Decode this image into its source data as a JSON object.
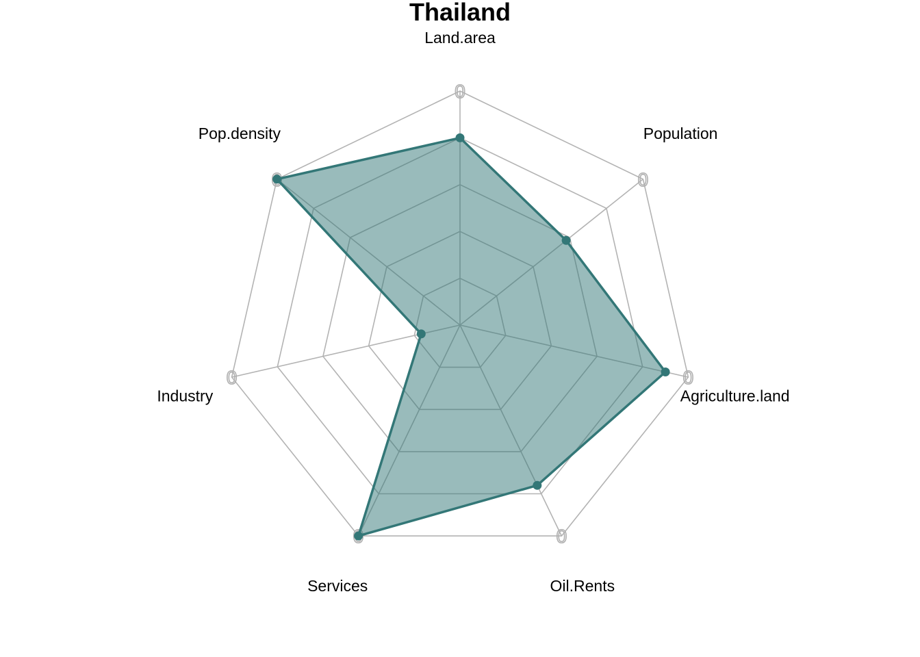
{
  "chart_data": {
    "type": "radar",
    "title": "Thailand",
    "axes": [
      "Land.area",
      "Population",
      "Agriculture.land",
      "Oil.Rents",
      "Services",
      "Industry",
      "Pop.density"
    ],
    "axis_tick_label": "0",
    "grid_levels": 5,
    "range": [
      0,
      1
    ],
    "series": [
      {
        "values": [
          0.8,
          0.58,
          0.9,
          0.76,
          1.0,
          0.17,
          1.0
        ]
      }
    ],
    "colors": {
      "line": "#337777",
      "fill": "#337777",
      "fill_opacity": 0.5,
      "grid": "#b3b3b3"
    },
    "grid": true,
    "legend": "none"
  }
}
